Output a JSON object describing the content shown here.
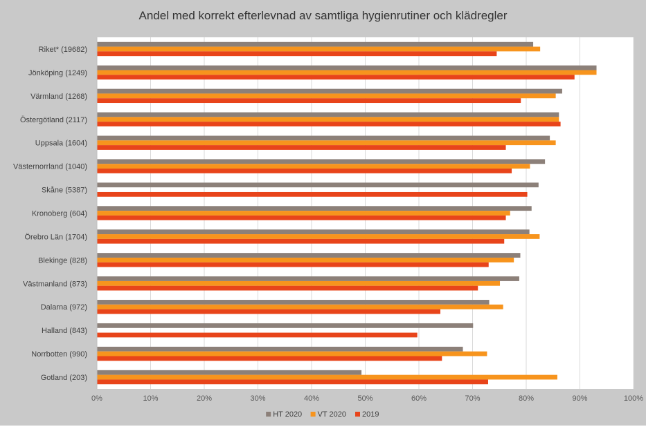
{
  "chart_data": {
    "type": "bar",
    "orientation": "horizontal",
    "title": "Andel med korrekt efterlevnad av samtliga hygienrutiner och klädregler",
    "xlabel": "",
    "ylabel": "",
    "xlim": [
      0,
      100
    ],
    "x_ticks": [
      "0%",
      "10%",
      "20%",
      "30%",
      "40%",
      "50%",
      "60%",
      "70%",
      "80%",
      "90%",
      "100%"
    ],
    "grid": true,
    "legend_position": "bottom",
    "categories": [
      "Riket* (19682)",
      "Jönköping (1249)",
      "Värmland (1268)",
      "Östergötland (2117)",
      "Uppsala (1604)",
      "Västernorrland (1040)",
      "Skåne (5387)",
      "Kronoberg (604)",
      "Örebro Län (1704)",
      "Blekinge (828)",
      "Västmanland (873)",
      "Dalarna (972)",
      "Halland (843)",
      "Norrbotten (990)",
      "Gotland (203)"
    ],
    "series": [
      {
        "name": "HT 2020",
        "color": "#8c8079",
        "values": [
          81.3,
          93.1,
          86.7,
          86.1,
          84.4,
          83.5,
          82.3,
          81.0,
          80.6,
          78.9,
          78.7,
          73.1,
          70.1,
          68.2,
          49.3
        ]
      },
      {
        "name": "VT 2020",
        "color": "#f7941d",
        "values": [
          82.6,
          93.1,
          85.5,
          86.1,
          85.5,
          80.7,
          null,
          77.0,
          82.5,
          77.7,
          75.1,
          75.7,
          null,
          72.7,
          85.8
        ]
      },
      {
        "name": "2019",
        "color": "#e8441a",
        "values": [
          74.5,
          89.0,
          79.0,
          86.4,
          76.2,
          77.3,
          80.2,
          76.2,
          75.9,
          73.0,
          71.0,
          64.0,
          59.7,
          64.3,
          72.9
        ]
      }
    ]
  }
}
